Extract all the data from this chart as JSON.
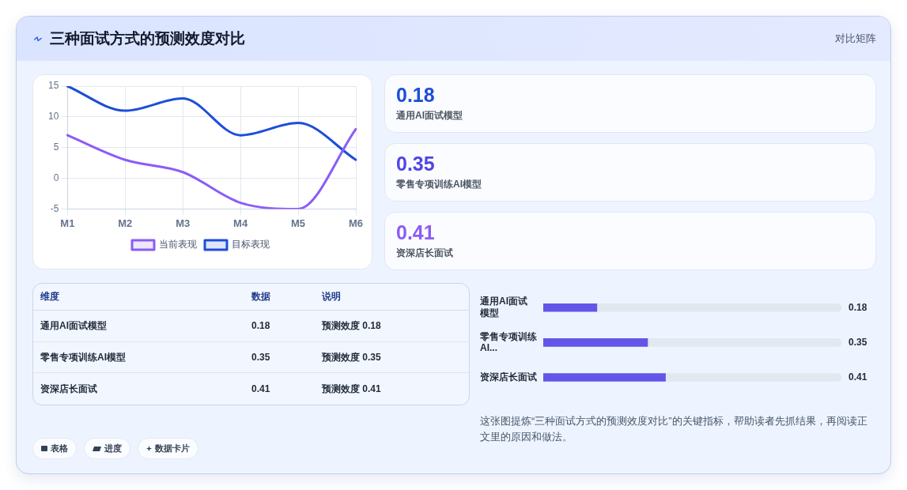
{
  "chart_data": [
    {
      "type": "line",
      "title": "三种面试方式的预测效度对比",
      "annotations": [
        "对比矩阵"
      ],
      "categories": [
        "M1",
        "M2",
        "M3",
        "M4",
        "M5",
        "M6"
      ],
      "series": [
        {
          "name": "当前表现",
          "color": "#8b5cf6",
          "values": [
            7,
            3,
            1,
            -4,
            -5,
            8
          ]
        },
        {
          "name": "目标表现",
          "color": "#1d4ed8",
          "values": [
            15,
            11,
            13,
            7,
            9,
            3
          ]
        }
      ],
      "ylim": [
        -5,
        15
      ],
      "yticks": [
        -5,
        0,
        5,
        10,
        15
      ],
      "grid": true,
      "legend": "bottom",
      "marker": "none"
    },
    {
      "type": "other",
      "categories": [
        "通用AI面试模型",
        "零售专项训练AI模型",
        "资深店长面试"
      ],
      "values": [
        0.18,
        0.35,
        0.41
      ],
      "data_labels": true
    },
    {
      "type": "other",
      "ylabel": "维度",
      "categories": [
        "通用AI面试模型",
        "零售专项训练AI模型",
        "资深店长面试"
      ],
      "series": [
        {
          "name": "数据",
          "values": [
            0.18,
            0.35,
            0.41
          ]
        },
        {
          "name": "说明",
          "values": [
            null,
            null,
            null
          ],
          "value_labels": [
            "预测效度 0.18",
            "预测效度 0.35",
            "预测效度 0.41"
          ]
        }
      ],
      "data_labels": true,
      "annotations": [
        "表格",
        "进度",
        "数据卡片"
      ]
    },
    {
      "type": "bar",
      "orientation": "horizontal",
      "stacked": true,
      "categories": [
        "通用AI面试模型",
        "零售专项训练AI...",
        "资深店长面试"
      ],
      "series": [
        {
          "color": "#6355e8",
          "values": [
            0.18,
            0.35,
            0.41
          ],
          "value_labels": [
            "0.18",
            "0.35",
            "0.41"
          ]
        },
        {
          "color": "#e2e8f0",
          "values": [
            0.82,
            0.65,
            0.59
          ]
        }
      ],
      "xlim": [
        0,
        1
      ],
      "tick_labels": "y",
      "annotations": [
        "这张图提炼“三种面试方式的预测效度对比”的关键指标，帮助读者先抓结果，再阅读正文里的原因和做法。"
      ]
    }
  ]
}
